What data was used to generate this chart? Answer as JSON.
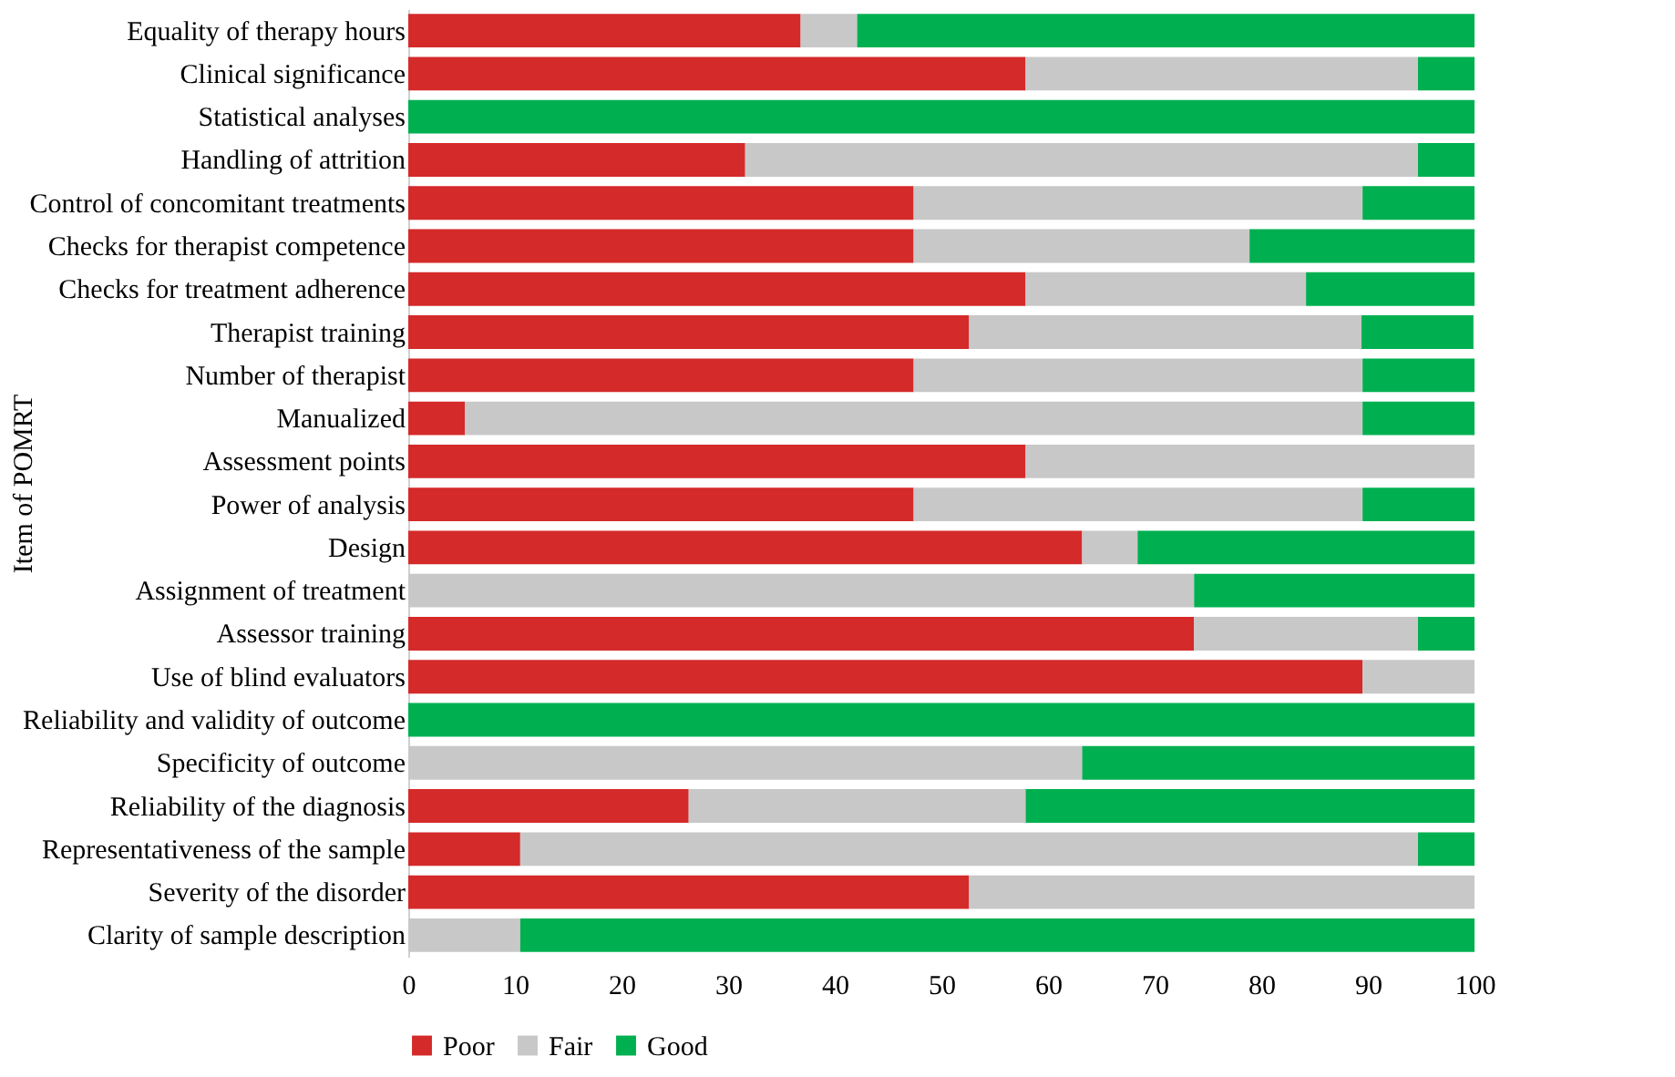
{
  "chart_data": {
    "type": "bar",
    "orientation": "horizontal",
    "stacked": true,
    "ylabel": "Item of POMRT",
    "categories": [
      "Equality of therapy hours",
      "Clinical significance",
      "Statistical analyses",
      "Handling of attrition",
      "Control of concomitant treatments",
      "Checks for therapist competence",
      "Checks for treatment adherence",
      "Therapist training",
      "Number of therapist",
      "Manualized",
      "Assessment points",
      "Power of analysis",
      "Design",
      "Assignment of treatment",
      "Assessor training",
      "Use of blind evaluators",
      "Reliability and validity of outcome",
      "Specificity of outcome",
      "Reliability of the diagnosis",
      "Representativeness of the sample",
      "Severity of the disorder",
      "Clarity of sample description"
    ],
    "series": [
      {
        "name": "Poor",
        "color": "#d42a2a",
        "values": [
          36.8,
          57.9,
          0,
          31.6,
          47.4,
          47.4,
          57.9,
          52.6,
          47.4,
          5.3,
          57.9,
          47.4,
          63.2,
          0,
          73.7,
          89.5,
          0,
          0,
          26.3,
          10.5,
          52.6,
          0
        ]
      },
      {
        "name": "Fair",
        "color": "#c8c8c8",
        "values": [
          5.3,
          36.8,
          0,
          63.1,
          42.1,
          31.5,
          26.3,
          36.8,
          42.1,
          84.2,
          42.1,
          42.1,
          5.2,
          73.7,
          21.0,
          10.5,
          0,
          63.2,
          31.6,
          84.2,
          47.4,
          10.5
        ]
      },
      {
        "name": "Good",
        "color": "#00b050",
        "values": [
          57.9,
          5.3,
          100,
          5.3,
          10.5,
          21.1,
          15.8,
          10.5,
          10.5,
          10.5,
          0,
          10.5,
          31.6,
          26.3,
          5.3,
          0,
          100,
          36.8,
          42.1,
          5.3,
          0,
          89.5
        ]
      }
    ],
    "xlim": [
      0,
      100
    ],
    "xticks": [
      0,
      10,
      20,
      30,
      40,
      50,
      60,
      70,
      80,
      90,
      100
    ],
    "grid": false,
    "legend": "bottom"
  }
}
